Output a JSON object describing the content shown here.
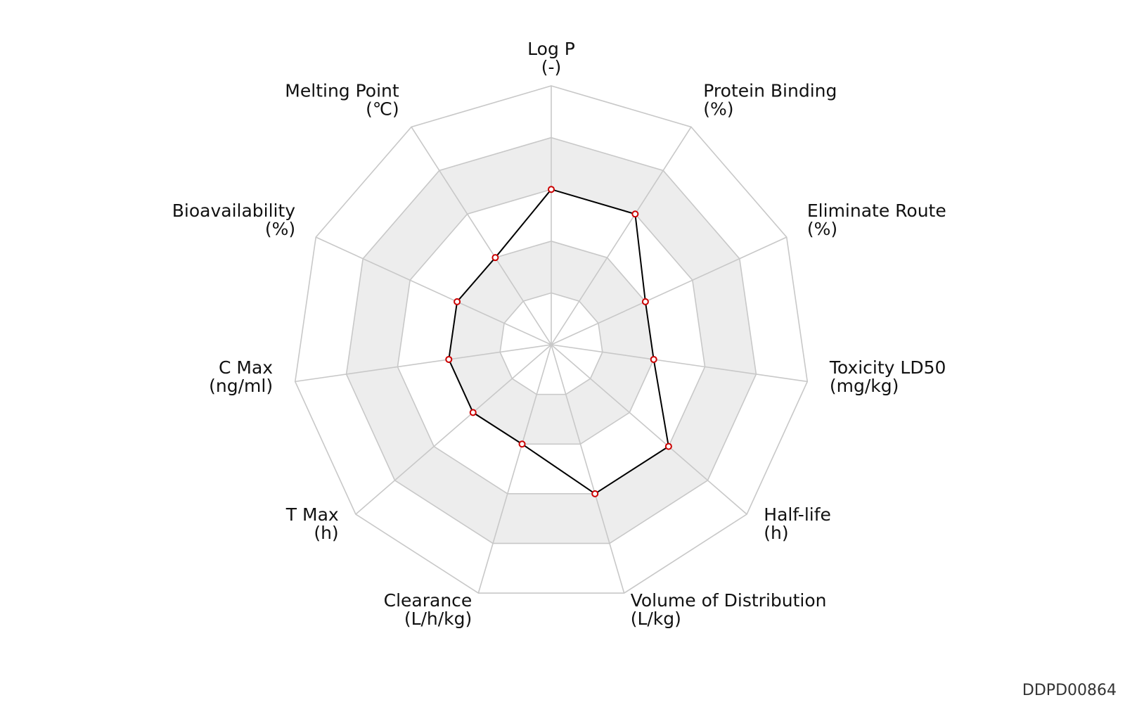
{
  "chart_data": {
    "type": "radar",
    "axes": [
      {
        "name": "Log P",
        "unit": "(-)"
      },
      {
        "name": "Protein Binding",
        "unit": "(%)"
      },
      {
        "name": "Eliminate Route",
        "unit": "(%)"
      },
      {
        "name": "Toxicity LD50",
        "unit": "(mg/kg)"
      },
      {
        "name": "Half-life",
        "unit": "(h)"
      },
      {
        "name": "Volume of Distribution",
        "unit": "(L/kg)"
      },
      {
        "name": "Clearance",
        "unit": "(L/h/kg)"
      },
      {
        "name": "T Max",
        "unit": "(h)"
      },
      {
        "name": "C Max",
        "unit": "(ng/ml)"
      },
      {
        "name": "Bioavailability",
        "unit": "(%)"
      },
      {
        "name": "Melting Point",
        "unit": "(℃)"
      }
    ],
    "series": [
      {
        "values": [
          0.6,
          0.6,
          0.4,
          0.4,
          0.6,
          0.6,
          0.4,
          0.4,
          0.4,
          0.4,
          0.4
        ]
      }
    ],
    "range": [
      0,
      1
    ],
    "rings": 5,
    "band_colors": [
      "#ffffff",
      "#ededed"
    ],
    "grid_color": "#c8c8c8",
    "line_color": "#000000",
    "marker_color": "#cc0000",
    "id_label": "DDPD00864"
  }
}
